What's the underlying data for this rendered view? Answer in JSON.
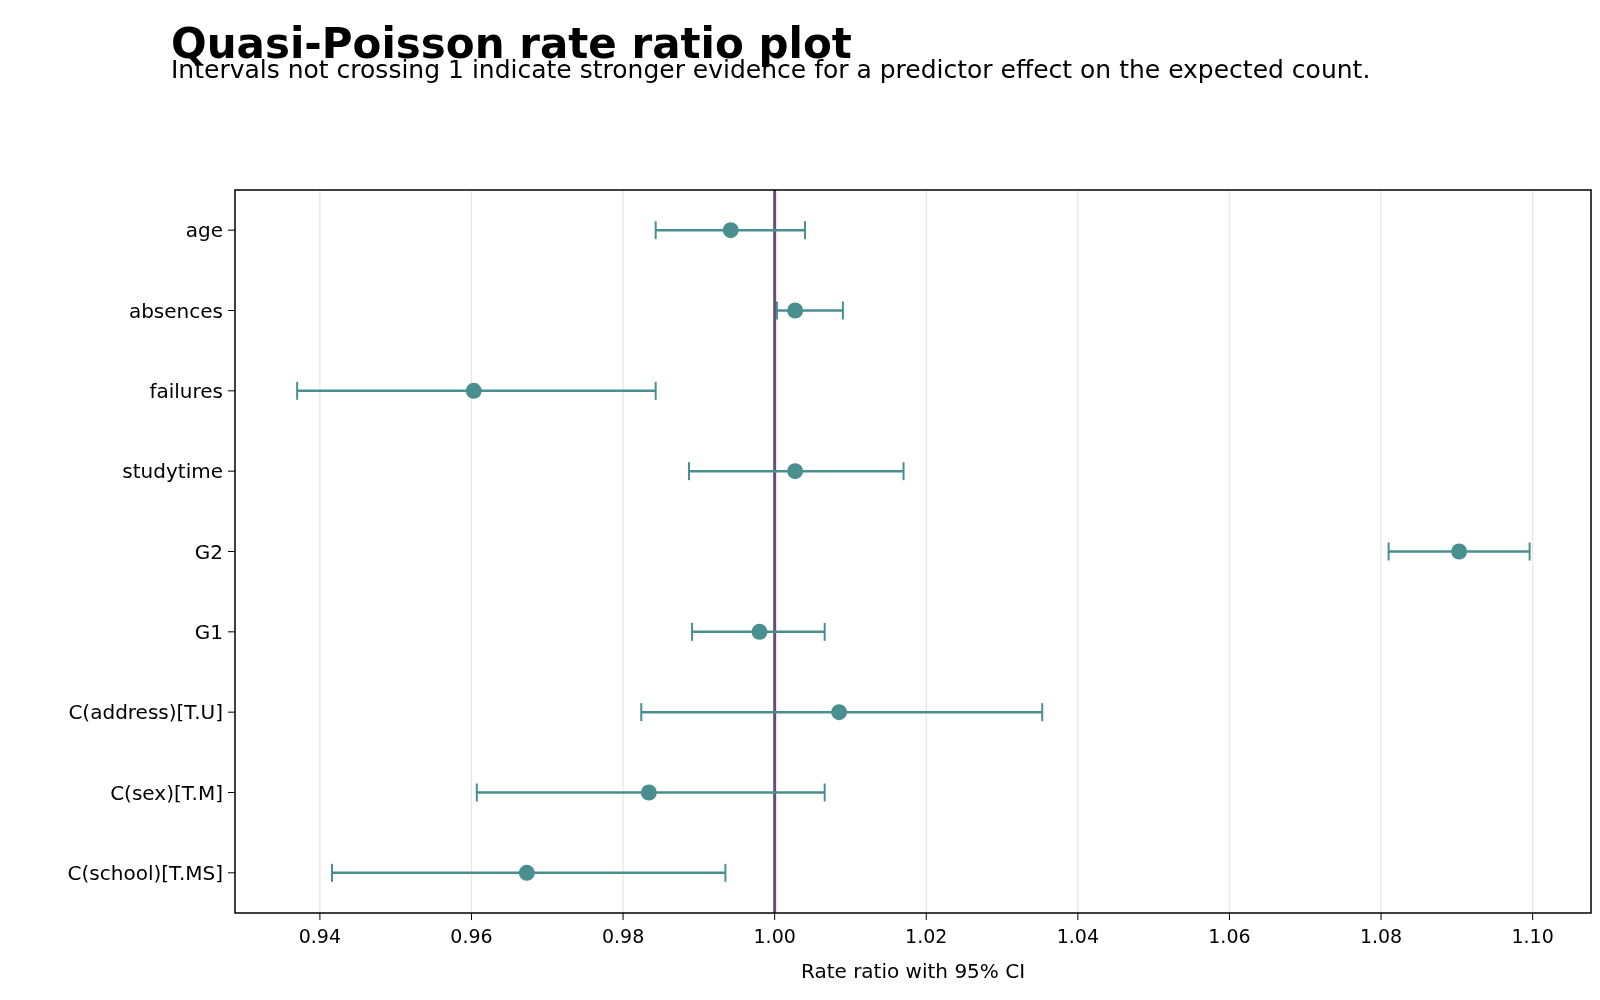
{
  "chart_data": {
    "type": "scatter",
    "orientation": "horizontal",
    "title": "Quasi-Poisson rate ratio plot",
    "subtitle": "Intervals not crossing 1 indicate stronger evidence for a predictor effect on the expected count.",
    "xlabel": "Rate ratio with 95% CI",
    "categories": [
      "age",
      "absences",
      "failures",
      "studytime",
      "G2",
      "G1",
      "C(address)[T.U]",
      "C(sex)[T.M]",
      "C(school)[T.MS]"
    ],
    "series": [
      {
        "color": "#4a8f8f",
        "values": [
          0.9942,
          1.0027,
          0.9603,
          1.0027,
          1.0903,
          0.998,
          1.0085,
          0.9834,
          0.9673
        ],
        "errors": [
          [
            0.9843,
            1.004
          ],
          [
            1.0003,
            1.009
          ],
          [
            0.937,
            0.9843
          ],
          [
            0.9887,
            1.017
          ],
          [
            1.081,
            1.0996
          ],
          [
            0.9891,
            1.0066
          ],
          [
            0.9824,
            1.0353
          ],
          [
            0.9607,
            1.0066
          ],
          [
            0.9416,
            0.9935
          ]
        ]
      }
    ],
    "xlim": [
      0.9288,
      1.1077
    ],
    "xticks": [
      {
        "value": 0.94,
        "label": "0.94"
      },
      {
        "value": 0.96,
        "label": "0.96"
      },
      {
        "value": 0.98,
        "label": "0.98"
      },
      {
        "value": 1,
        "label": "1.00"
      },
      {
        "value": 1.02,
        "label": "1.02"
      },
      {
        "value": 1.04,
        "label": "1.04"
      },
      {
        "value": 1.06,
        "label": "1.06"
      },
      {
        "value": 1.08,
        "label": "1.08"
      },
      {
        "value": 1.1,
        "label": "1.10"
      }
    ],
    "grid": "x",
    "marker": "circle",
    "ref_lines": [
      {
        "axis": "x",
        "value": 1,
        "color": "#6a4c7c"
      }
    ]
  }
}
